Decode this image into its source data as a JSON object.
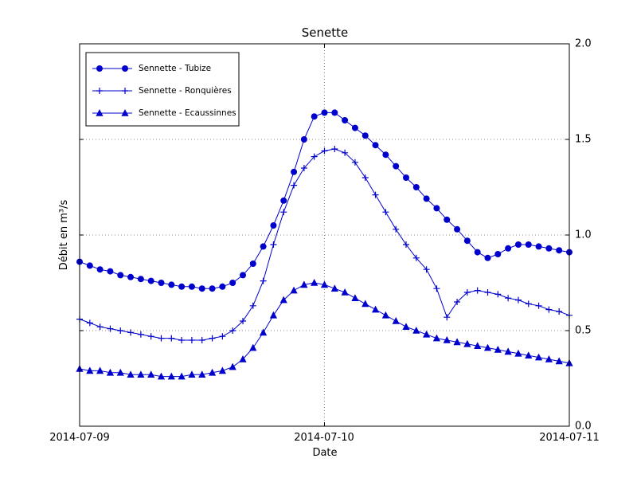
{
  "figure": {
    "background": "#ffffff",
    "frame_color": "#000000",
    "grid_color": "#606060"
  },
  "chart_data": {
    "type": "line",
    "title": "Senette",
    "xlabel": "Date",
    "ylabel": "Débit en m³/s",
    "xlim_days": [
      0,
      2
    ],
    "ylim": [
      0.0,
      2.0
    ],
    "xtick_positions_days": [
      0,
      1,
      2
    ],
    "xticklabels": [
      "2014-07-09",
      "2014-07-10",
      "2014-07-11"
    ],
    "ytick_positions": [
      0.0,
      0.5,
      1.0,
      1.5,
      2.0
    ],
    "yticklabels": [
      "0.0",
      "0.5",
      "1.0",
      "1.5",
      "2.0"
    ],
    "grid": true,
    "grid_style": "dotted",
    "legend_position": "upper left",
    "x_days": [
      0,
      0.0417,
      0.0833,
      0.125,
      0.1667,
      0.2083,
      0.25,
      0.2917,
      0.3333,
      0.375,
      0.4167,
      0.4583,
      0.5,
      0.5417,
      0.5833,
      0.625,
      0.6667,
      0.7083,
      0.75,
      0.7917,
      0.8333,
      0.875,
      0.9167,
      0.9583,
      1,
      1.0417,
      1.0833,
      1.125,
      1.1667,
      1.2083,
      1.25,
      1.2917,
      1.3333,
      1.375,
      1.4167,
      1.4583,
      1.5,
      1.5417,
      1.5833,
      1.625,
      1.6667,
      1.7083,
      1.75,
      1.7917,
      1.8333,
      1.875,
      1.9167,
      1.9583,
      2
    ],
    "series": [
      {
        "name": "Sennette - Tubize",
        "marker": "circle",
        "color": "#0000cd",
        "values": [
          0.86,
          0.84,
          0.82,
          0.81,
          0.79,
          0.78,
          0.77,
          0.76,
          0.75,
          0.74,
          0.73,
          0.73,
          0.72,
          0.72,
          0.73,
          0.75,
          0.79,
          0.85,
          0.94,
          1.05,
          1.18,
          1.33,
          1.5,
          1.62,
          1.64,
          1.64,
          1.6,
          1.56,
          1.52,
          1.47,
          1.42,
          1.36,
          1.3,
          1.25,
          1.19,
          1.14,
          1.08,
          1.03,
          0.97,
          0.91,
          0.88,
          0.9,
          0.93,
          0.95,
          0.95,
          0.94,
          0.93,
          0.92,
          0.91
        ]
      },
      {
        "name": "Sennette - Ronquières",
        "marker": "plus",
        "color": "#0000cd",
        "values": [
          0.56,
          0.54,
          0.52,
          0.51,
          0.5,
          0.49,
          0.48,
          0.47,
          0.46,
          0.46,
          0.45,
          0.45,
          0.45,
          0.46,
          0.47,
          0.5,
          0.55,
          0.63,
          0.76,
          0.95,
          1.12,
          1.26,
          1.35,
          1.41,
          1.44,
          1.45,
          1.43,
          1.38,
          1.3,
          1.21,
          1.12,
          1.03,
          0.95,
          0.88,
          0.82,
          0.72,
          0.57,
          0.65,
          0.7,
          0.71,
          0.7,
          0.69,
          0.67,
          0.66,
          0.64,
          0.63,
          0.61,
          0.6,
          0.58
        ]
      },
      {
        "name": "Sennette - Ecaussinnes",
        "marker": "triangle",
        "color": "#0000cd",
        "values": [
          0.3,
          0.29,
          0.29,
          0.28,
          0.28,
          0.27,
          0.27,
          0.27,
          0.26,
          0.26,
          0.26,
          0.27,
          0.27,
          0.28,
          0.29,
          0.31,
          0.35,
          0.41,
          0.49,
          0.58,
          0.66,
          0.71,
          0.74,
          0.75,
          0.74,
          0.72,
          0.7,
          0.67,
          0.64,
          0.61,
          0.58,
          0.55,
          0.52,
          0.5,
          0.48,
          0.46,
          0.45,
          0.44,
          0.43,
          0.42,
          0.41,
          0.4,
          0.39,
          0.38,
          0.37,
          0.36,
          0.35,
          0.34,
          0.33
        ]
      }
    ]
  }
}
